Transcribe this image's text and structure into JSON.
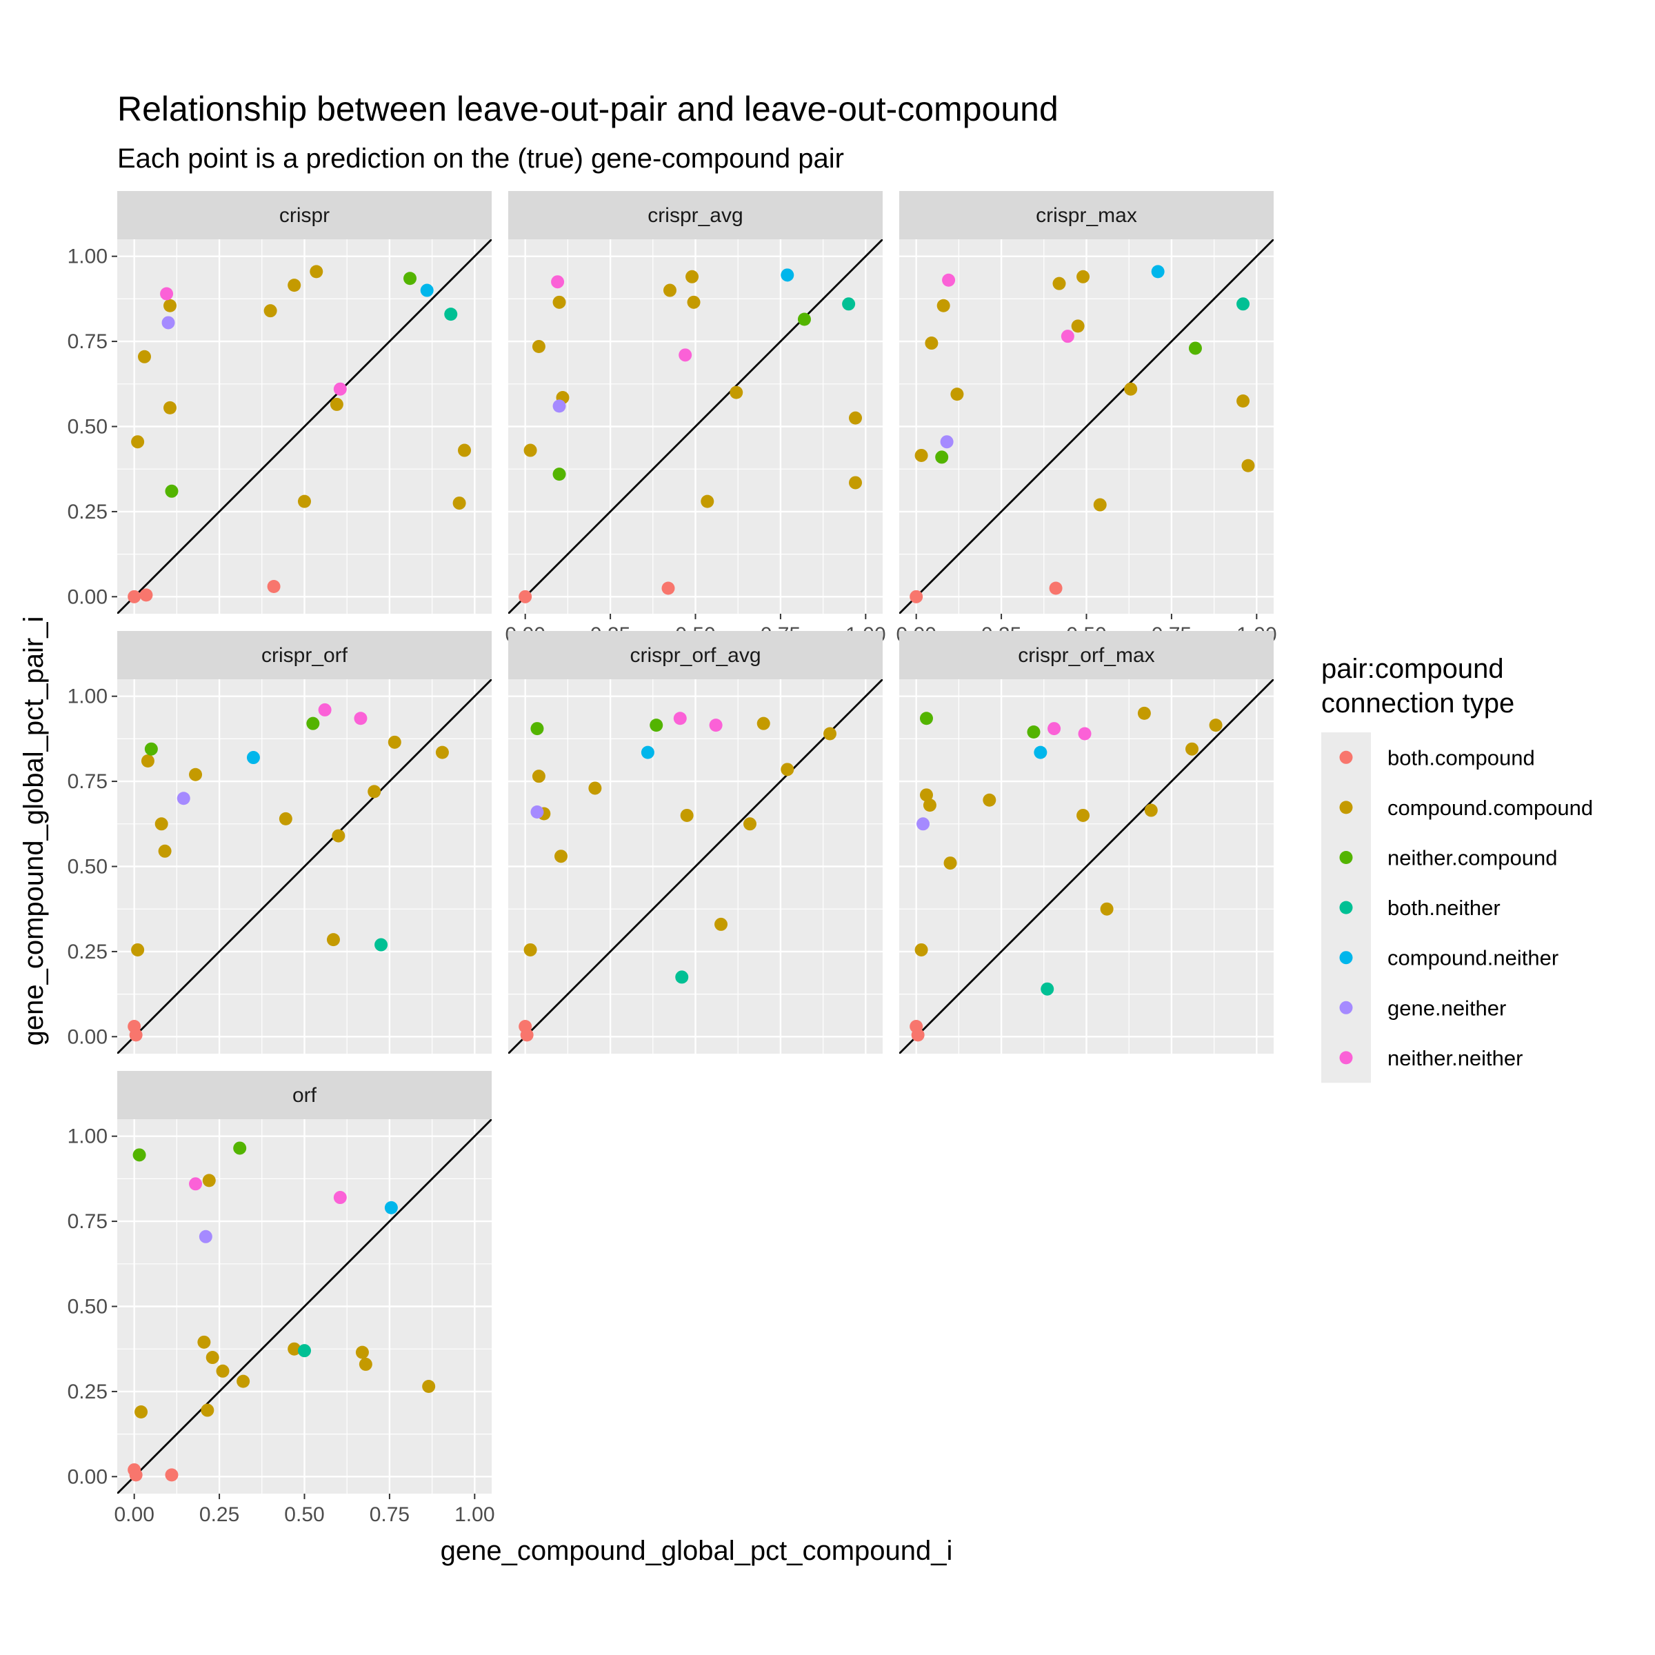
{
  "chart_data": {
    "type": "scatter",
    "title": "Relationship between leave-out-pair and leave-out-compound",
    "subtitle": "Each point is a prediction on the (true) gene-compound pair",
    "xlabel": "gene_compound_global_pct_compound_i",
    "ylabel": "gene_compound_global_pct_pair_i",
    "xlim": [
      -0.05,
      1.05
    ],
    "ylim": [
      -0.05,
      1.05
    ],
    "x_ticks": [
      0.0,
      0.25,
      0.5,
      0.75,
      1.0
    ],
    "y_ticks": [
      0.0,
      0.25,
      0.5,
      0.75,
      1.0
    ],
    "x_tick_labels": [
      "0.00",
      "0.25",
      "0.50",
      "0.75",
      "1.00"
    ],
    "y_tick_labels": [
      "0.00",
      "0.25",
      "0.50",
      "0.75",
      "1.00"
    ],
    "reference_line": "y = x",
    "grid": true,
    "legend": {
      "title_lines": [
        "pair:compound",
        "connection type"
      ],
      "position": "right",
      "entries": [
        {
          "key": "both.compound",
          "label": "both.compound",
          "color": "#F8766D"
        },
        {
          "key": "compound.compound",
          "label": "compound.compound",
          "color": "#C49A00"
        },
        {
          "key": "neither.compound",
          "label": "neither.compound",
          "color": "#53B400"
        },
        {
          "key": "both.neither",
          "label": "both.neither",
          "color": "#00C094"
        },
        {
          "key": "compound.neither",
          "label": "compound.neither",
          "color": "#00B6EB"
        },
        {
          "key": "gene.neither",
          "label": "gene.neither",
          "color": "#A58AFF"
        },
        {
          "key": "neither.neither",
          "label": "neither.neither",
          "color": "#FB61D7"
        }
      ]
    },
    "facets": [
      {
        "name": "crispr",
        "points": [
          {
            "x": 0.0,
            "y": 0.0,
            "type": "both.compound"
          },
          {
            "x": 0.035,
            "y": 0.005,
            "type": "both.compound"
          },
          {
            "x": 0.41,
            "y": 0.03,
            "type": "both.compound"
          },
          {
            "x": 0.01,
            "y": 0.455,
            "type": "compound.compound"
          },
          {
            "x": 0.03,
            "y": 0.705,
            "type": "compound.compound"
          },
          {
            "x": 0.105,
            "y": 0.855,
            "type": "compound.compound"
          },
          {
            "x": 0.105,
            "y": 0.555,
            "type": "compound.compound"
          },
          {
            "x": 0.4,
            "y": 0.84,
            "type": "compound.compound"
          },
          {
            "x": 0.47,
            "y": 0.915,
            "type": "compound.compound"
          },
          {
            "x": 0.535,
            "y": 0.955,
            "type": "compound.compound"
          },
          {
            "x": 0.5,
            "y": 0.28,
            "type": "compound.compound"
          },
          {
            "x": 0.595,
            "y": 0.565,
            "type": "compound.compound"
          },
          {
            "x": 0.97,
            "y": 0.43,
            "type": "compound.compound"
          },
          {
            "x": 0.955,
            "y": 0.275,
            "type": "compound.compound"
          },
          {
            "x": 0.11,
            "y": 0.31,
            "type": "neither.compound"
          },
          {
            "x": 0.81,
            "y": 0.935,
            "type": "neither.compound"
          },
          {
            "x": 0.93,
            "y": 0.83,
            "type": "both.neither"
          },
          {
            "x": 0.86,
            "y": 0.9,
            "type": "compound.neither"
          },
          {
            "x": 0.1,
            "y": 0.805,
            "type": "gene.neither"
          },
          {
            "x": 0.095,
            "y": 0.89,
            "type": "neither.neither"
          },
          {
            "x": 0.605,
            "y": 0.61,
            "type": "neither.neither"
          }
        ]
      },
      {
        "name": "crispr_avg",
        "points": [
          {
            "x": 0.0,
            "y": 0.0,
            "type": "both.compound"
          },
          {
            "x": 0.42,
            "y": 0.025,
            "type": "both.compound"
          },
          {
            "x": 0.015,
            "y": 0.43,
            "type": "compound.compound"
          },
          {
            "x": 0.04,
            "y": 0.735,
            "type": "compound.compound"
          },
          {
            "x": 0.1,
            "y": 0.865,
            "type": "compound.compound"
          },
          {
            "x": 0.11,
            "y": 0.585,
            "type": "compound.compound"
          },
          {
            "x": 0.425,
            "y": 0.9,
            "type": "compound.compound"
          },
          {
            "x": 0.49,
            "y": 0.94,
            "type": "compound.compound"
          },
          {
            "x": 0.495,
            "y": 0.865,
            "type": "compound.compound"
          },
          {
            "x": 0.62,
            "y": 0.6,
            "type": "compound.compound"
          },
          {
            "x": 0.535,
            "y": 0.28,
            "type": "compound.compound"
          },
          {
            "x": 0.97,
            "y": 0.525,
            "type": "compound.compound"
          },
          {
            "x": 0.97,
            "y": 0.335,
            "type": "compound.compound"
          },
          {
            "x": 0.1,
            "y": 0.36,
            "type": "neither.compound"
          },
          {
            "x": 0.82,
            "y": 0.815,
            "type": "neither.compound"
          },
          {
            "x": 0.95,
            "y": 0.86,
            "type": "both.neither"
          },
          {
            "x": 0.77,
            "y": 0.945,
            "type": "compound.neither"
          },
          {
            "x": 0.1,
            "y": 0.56,
            "type": "gene.neither"
          },
          {
            "x": 0.095,
            "y": 0.925,
            "type": "neither.neither"
          },
          {
            "x": 0.47,
            "y": 0.71,
            "type": "neither.neither"
          }
        ]
      },
      {
        "name": "crispr_max",
        "points": [
          {
            "x": 0.0,
            "y": 0.0,
            "type": "both.compound"
          },
          {
            "x": 0.41,
            "y": 0.025,
            "type": "both.compound"
          },
          {
            "x": 0.015,
            "y": 0.415,
            "type": "compound.compound"
          },
          {
            "x": 0.045,
            "y": 0.745,
            "type": "compound.compound"
          },
          {
            "x": 0.08,
            "y": 0.855,
            "type": "compound.compound"
          },
          {
            "x": 0.12,
            "y": 0.595,
            "type": "compound.compound"
          },
          {
            "x": 0.42,
            "y": 0.92,
            "type": "compound.compound"
          },
          {
            "x": 0.49,
            "y": 0.94,
            "type": "compound.compound"
          },
          {
            "x": 0.475,
            "y": 0.795,
            "type": "compound.compound"
          },
          {
            "x": 0.63,
            "y": 0.61,
            "type": "compound.compound"
          },
          {
            "x": 0.54,
            "y": 0.27,
            "type": "compound.compound"
          },
          {
            "x": 0.96,
            "y": 0.575,
            "type": "compound.compound"
          },
          {
            "x": 0.975,
            "y": 0.385,
            "type": "compound.compound"
          },
          {
            "x": 0.075,
            "y": 0.41,
            "type": "neither.compound"
          },
          {
            "x": 0.82,
            "y": 0.73,
            "type": "neither.compound"
          },
          {
            "x": 0.96,
            "y": 0.86,
            "type": "both.neither"
          },
          {
            "x": 0.71,
            "y": 0.955,
            "type": "compound.neither"
          },
          {
            "x": 0.09,
            "y": 0.455,
            "type": "gene.neither"
          },
          {
            "x": 0.095,
            "y": 0.93,
            "type": "neither.neither"
          },
          {
            "x": 0.445,
            "y": 0.765,
            "type": "neither.neither"
          }
        ]
      },
      {
        "name": "crispr_orf",
        "points": [
          {
            "x": 0.0,
            "y": 0.03,
            "type": "both.compound"
          },
          {
            "x": 0.005,
            "y": 0.005,
            "type": "both.compound"
          },
          {
            "x": 0.01,
            "y": 0.255,
            "type": "compound.compound"
          },
          {
            "x": 0.04,
            "y": 0.81,
            "type": "compound.compound"
          },
          {
            "x": 0.08,
            "y": 0.625,
            "type": "compound.compound"
          },
          {
            "x": 0.09,
            "y": 0.545,
            "type": "compound.compound"
          },
          {
            "x": 0.18,
            "y": 0.77,
            "type": "compound.compound"
          },
          {
            "x": 0.445,
            "y": 0.64,
            "type": "compound.compound"
          },
          {
            "x": 0.6,
            "y": 0.59,
            "type": "compound.compound"
          },
          {
            "x": 0.585,
            "y": 0.285,
            "type": "compound.compound"
          },
          {
            "x": 0.705,
            "y": 0.72,
            "type": "compound.compound"
          },
          {
            "x": 0.765,
            "y": 0.865,
            "type": "compound.compound"
          },
          {
            "x": 0.905,
            "y": 0.835,
            "type": "compound.compound"
          },
          {
            "x": 0.05,
            "y": 0.845,
            "type": "neither.compound"
          },
          {
            "x": 0.525,
            "y": 0.92,
            "type": "neither.compound"
          },
          {
            "x": 0.725,
            "y": 0.27,
            "type": "both.neither"
          },
          {
            "x": 0.35,
            "y": 0.82,
            "type": "compound.neither"
          },
          {
            "x": 0.145,
            "y": 0.7,
            "type": "gene.neither"
          },
          {
            "x": 0.56,
            "y": 0.96,
            "type": "neither.neither"
          },
          {
            "x": 0.665,
            "y": 0.935,
            "type": "neither.neither"
          }
        ]
      },
      {
        "name": "crispr_orf_avg",
        "points": [
          {
            "x": 0.0,
            "y": 0.03,
            "type": "both.compound"
          },
          {
            "x": 0.005,
            "y": 0.005,
            "type": "both.compound"
          },
          {
            "x": 0.015,
            "y": 0.255,
            "type": "compound.compound"
          },
          {
            "x": 0.04,
            "y": 0.765,
            "type": "compound.compound"
          },
          {
            "x": 0.055,
            "y": 0.655,
            "type": "compound.compound"
          },
          {
            "x": 0.105,
            "y": 0.53,
            "type": "compound.compound"
          },
          {
            "x": 0.205,
            "y": 0.73,
            "type": "compound.compound"
          },
          {
            "x": 0.475,
            "y": 0.65,
            "type": "compound.compound"
          },
          {
            "x": 0.575,
            "y": 0.33,
            "type": "compound.compound"
          },
          {
            "x": 0.66,
            "y": 0.625,
            "type": "compound.compound"
          },
          {
            "x": 0.7,
            "y": 0.92,
            "type": "compound.compound"
          },
          {
            "x": 0.77,
            "y": 0.785,
            "type": "compound.compound"
          },
          {
            "x": 0.895,
            "y": 0.89,
            "type": "compound.compound"
          },
          {
            "x": 0.035,
            "y": 0.905,
            "type": "neither.compound"
          },
          {
            "x": 0.385,
            "y": 0.915,
            "type": "neither.compound"
          },
          {
            "x": 0.46,
            "y": 0.175,
            "type": "both.neither"
          },
          {
            "x": 0.36,
            "y": 0.835,
            "type": "compound.neither"
          },
          {
            "x": 0.035,
            "y": 0.66,
            "type": "gene.neither"
          },
          {
            "x": 0.455,
            "y": 0.935,
            "type": "neither.neither"
          },
          {
            "x": 0.56,
            "y": 0.915,
            "type": "neither.neither"
          }
        ]
      },
      {
        "name": "crispr_orf_max",
        "points": [
          {
            "x": 0.0,
            "y": 0.03,
            "type": "both.compound"
          },
          {
            "x": 0.005,
            "y": 0.005,
            "type": "both.compound"
          },
          {
            "x": 0.015,
            "y": 0.255,
            "type": "compound.compound"
          },
          {
            "x": 0.03,
            "y": 0.71,
            "type": "compound.compound"
          },
          {
            "x": 0.04,
            "y": 0.68,
            "type": "compound.compound"
          },
          {
            "x": 0.1,
            "y": 0.51,
            "type": "compound.compound"
          },
          {
            "x": 0.215,
            "y": 0.695,
            "type": "compound.compound"
          },
          {
            "x": 0.49,
            "y": 0.65,
            "type": "compound.compound"
          },
          {
            "x": 0.56,
            "y": 0.375,
            "type": "compound.compound"
          },
          {
            "x": 0.67,
            "y": 0.95,
            "type": "compound.compound"
          },
          {
            "x": 0.69,
            "y": 0.665,
            "type": "compound.compound"
          },
          {
            "x": 0.81,
            "y": 0.845,
            "type": "compound.compound"
          },
          {
            "x": 0.88,
            "y": 0.915,
            "type": "compound.compound"
          },
          {
            "x": 0.03,
            "y": 0.935,
            "type": "neither.compound"
          },
          {
            "x": 0.345,
            "y": 0.895,
            "type": "neither.compound"
          },
          {
            "x": 0.385,
            "y": 0.14,
            "type": "both.neither"
          },
          {
            "x": 0.365,
            "y": 0.835,
            "type": "compound.neither"
          },
          {
            "x": 0.02,
            "y": 0.625,
            "type": "gene.neither"
          },
          {
            "x": 0.405,
            "y": 0.905,
            "type": "neither.neither"
          },
          {
            "x": 0.495,
            "y": 0.89,
            "type": "neither.neither"
          }
        ]
      },
      {
        "name": "orf",
        "points": [
          {
            "x": 0.0,
            "y": 0.02,
            "type": "both.compound"
          },
          {
            "x": 0.005,
            "y": 0.005,
            "type": "both.compound"
          },
          {
            "x": 0.11,
            "y": 0.005,
            "type": "both.compound"
          },
          {
            "x": 0.02,
            "y": 0.19,
            "type": "compound.compound"
          },
          {
            "x": 0.205,
            "y": 0.395,
            "type": "compound.compound"
          },
          {
            "x": 0.215,
            "y": 0.195,
            "type": "compound.compound"
          },
          {
            "x": 0.22,
            "y": 0.87,
            "type": "compound.compound"
          },
          {
            "x": 0.23,
            "y": 0.35,
            "type": "compound.compound"
          },
          {
            "x": 0.26,
            "y": 0.31,
            "type": "compound.compound"
          },
          {
            "x": 0.32,
            "y": 0.28,
            "type": "compound.compound"
          },
          {
            "x": 0.47,
            "y": 0.375,
            "type": "compound.compound"
          },
          {
            "x": 0.67,
            "y": 0.365,
            "type": "compound.compound"
          },
          {
            "x": 0.68,
            "y": 0.33,
            "type": "compound.compound"
          },
          {
            "x": 0.865,
            "y": 0.265,
            "type": "compound.compound"
          },
          {
            "x": 0.015,
            "y": 0.945,
            "type": "neither.compound"
          },
          {
            "x": 0.31,
            "y": 0.965,
            "type": "neither.compound"
          },
          {
            "x": 0.5,
            "y": 0.37,
            "type": "both.neither"
          },
          {
            "x": 0.755,
            "y": 0.79,
            "type": "compound.neither"
          },
          {
            "x": 0.21,
            "y": 0.705,
            "type": "gene.neither"
          },
          {
            "x": 0.18,
            "y": 0.86,
            "type": "neither.neither"
          },
          {
            "x": 0.605,
            "y": 0.82,
            "type": "neither.neither"
          }
        ]
      }
    ]
  }
}
